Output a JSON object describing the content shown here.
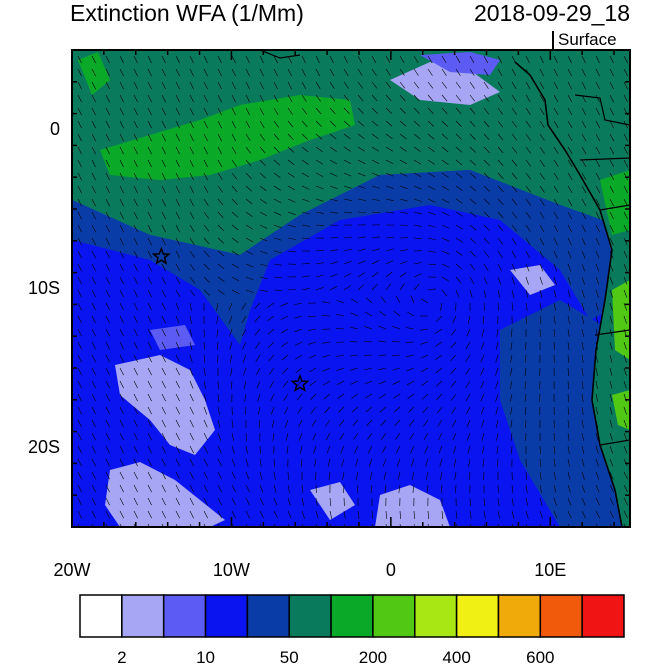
{
  "title": "Extinction WFA (1/Mm)",
  "datetime": "2018-09-29_18",
  "level": "Surface",
  "map": {
    "lon_range": [
      -20,
      15
    ],
    "lat_range": [
      -25,
      5
    ],
    "lon_ticks": [
      {
        "value": -20,
        "label": "20W"
      },
      {
        "value": -10,
        "label": "10W"
      },
      {
        "value": 0,
        "label": "0"
      },
      {
        "value": 10,
        "label": "10E"
      }
    ],
    "lat_ticks": [
      {
        "value": 0,
        "label": "0"
      },
      {
        "value": -10,
        "label": "10S"
      },
      {
        "value": -20,
        "label": "20S"
      }
    ],
    "markers": [
      {
        "name": "star-marker-1",
        "lon": -14.4,
        "lat": -8.0
      },
      {
        "name": "star-marker-2",
        "lon": -5.7,
        "lat": -16.0
      }
    ]
  },
  "colorbar": {
    "colors": [
      "#ffffff",
      "#a6a6f4",
      "#5c5cf5",
      "#0a14f0",
      "#0a3ca8",
      "#0a7a5c",
      "#0aaa28",
      "#50c814",
      "#a8e614",
      "#f0f014",
      "#f0aa0a",
      "#f05a0a",
      "#f01414"
    ],
    "labels": [
      {
        "boundary": 1,
        "text": "2"
      },
      {
        "boundary": 3,
        "text": "10"
      },
      {
        "boundary": 5,
        "text": "50"
      },
      {
        "boundary": 7,
        "text": "200"
      },
      {
        "boundary": 9,
        "text": "400"
      },
      {
        "boundary": 11,
        "text": "600"
      }
    ]
  }
}
